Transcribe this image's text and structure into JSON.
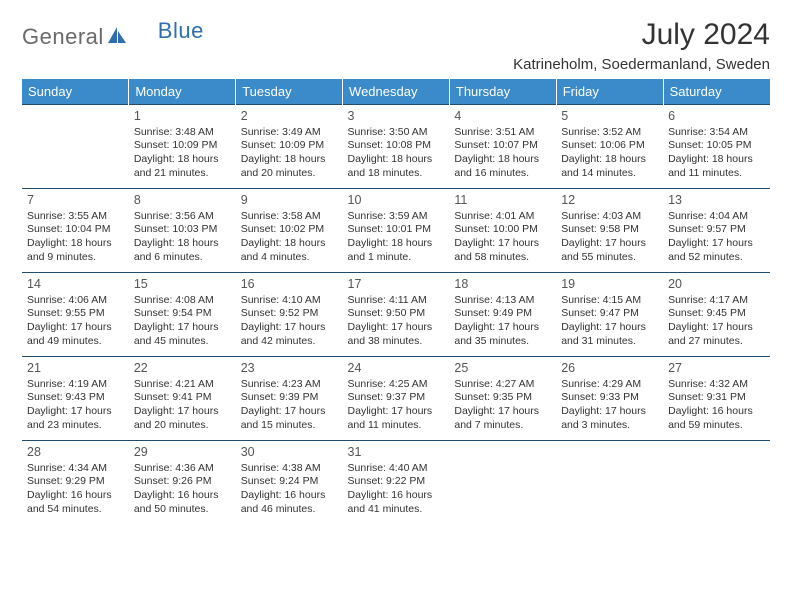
{
  "brand": {
    "part1": "General",
    "part2": "Blue"
  },
  "title": "July 2024",
  "location": "Katrineholm, Soedermanland, Sweden",
  "colors": {
    "header_bg": "#3b8bca",
    "header_text": "#ffffff",
    "rule": "#234b6b",
    "brand_gray": "#6a6a6a",
    "brand_blue": "#2f6fb0",
    "text": "#333333",
    "background": "#ffffff"
  },
  "typography": {
    "title_fontsize": 30,
    "location_fontsize": 15,
    "dayheader_fontsize": 13,
    "cell_fontsize": 10.5
  },
  "weekdays": [
    "Sunday",
    "Monday",
    "Tuesday",
    "Wednesday",
    "Thursday",
    "Friday",
    "Saturday"
  ],
  "grid": {
    "first_weekday_index": 1,
    "days_in_month": 31,
    "rows": 5,
    "cols": 7
  },
  "days": {
    "1": {
      "sunrise": "3:48 AM",
      "sunset": "10:09 PM",
      "daylight": "18 hours and 21 minutes."
    },
    "2": {
      "sunrise": "3:49 AM",
      "sunset": "10:09 PM",
      "daylight": "18 hours and 20 minutes."
    },
    "3": {
      "sunrise": "3:50 AM",
      "sunset": "10:08 PM",
      "daylight": "18 hours and 18 minutes."
    },
    "4": {
      "sunrise": "3:51 AM",
      "sunset": "10:07 PM",
      "daylight": "18 hours and 16 minutes."
    },
    "5": {
      "sunrise": "3:52 AM",
      "sunset": "10:06 PM",
      "daylight": "18 hours and 14 minutes."
    },
    "6": {
      "sunrise": "3:54 AM",
      "sunset": "10:05 PM",
      "daylight": "18 hours and 11 minutes."
    },
    "7": {
      "sunrise": "3:55 AM",
      "sunset": "10:04 PM",
      "daylight": "18 hours and 9 minutes."
    },
    "8": {
      "sunrise": "3:56 AM",
      "sunset": "10:03 PM",
      "daylight": "18 hours and 6 minutes."
    },
    "9": {
      "sunrise": "3:58 AM",
      "sunset": "10:02 PM",
      "daylight": "18 hours and 4 minutes."
    },
    "10": {
      "sunrise": "3:59 AM",
      "sunset": "10:01 PM",
      "daylight": "18 hours and 1 minute."
    },
    "11": {
      "sunrise": "4:01 AM",
      "sunset": "10:00 PM",
      "daylight": "17 hours and 58 minutes."
    },
    "12": {
      "sunrise": "4:03 AM",
      "sunset": "9:58 PM",
      "daylight": "17 hours and 55 minutes."
    },
    "13": {
      "sunrise": "4:04 AM",
      "sunset": "9:57 PM",
      "daylight": "17 hours and 52 minutes."
    },
    "14": {
      "sunrise": "4:06 AM",
      "sunset": "9:55 PM",
      "daylight": "17 hours and 49 minutes."
    },
    "15": {
      "sunrise": "4:08 AM",
      "sunset": "9:54 PM",
      "daylight": "17 hours and 45 minutes."
    },
    "16": {
      "sunrise": "4:10 AM",
      "sunset": "9:52 PM",
      "daylight": "17 hours and 42 minutes."
    },
    "17": {
      "sunrise": "4:11 AM",
      "sunset": "9:50 PM",
      "daylight": "17 hours and 38 minutes."
    },
    "18": {
      "sunrise": "4:13 AM",
      "sunset": "9:49 PM",
      "daylight": "17 hours and 35 minutes."
    },
    "19": {
      "sunrise": "4:15 AM",
      "sunset": "9:47 PM",
      "daylight": "17 hours and 31 minutes."
    },
    "20": {
      "sunrise": "4:17 AM",
      "sunset": "9:45 PM",
      "daylight": "17 hours and 27 minutes."
    },
    "21": {
      "sunrise": "4:19 AM",
      "sunset": "9:43 PM",
      "daylight": "17 hours and 23 minutes."
    },
    "22": {
      "sunrise": "4:21 AM",
      "sunset": "9:41 PM",
      "daylight": "17 hours and 20 minutes."
    },
    "23": {
      "sunrise": "4:23 AM",
      "sunset": "9:39 PM",
      "daylight": "17 hours and 15 minutes."
    },
    "24": {
      "sunrise": "4:25 AM",
      "sunset": "9:37 PM",
      "daylight": "17 hours and 11 minutes."
    },
    "25": {
      "sunrise": "4:27 AM",
      "sunset": "9:35 PM",
      "daylight": "17 hours and 7 minutes."
    },
    "26": {
      "sunrise": "4:29 AM",
      "sunset": "9:33 PM",
      "daylight": "17 hours and 3 minutes."
    },
    "27": {
      "sunrise": "4:32 AM",
      "sunset": "9:31 PM",
      "daylight": "16 hours and 59 minutes."
    },
    "28": {
      "sunrise": "4:34 AM",
      "sunset": "9:29 PM",
      "daylight": "16 hours and 54 minutes."
    },
    "29": {
      "sunrise": "4:36 AM",
      "sunset": "9:26 PM",
      "daylight": "16 hours and 50 minutes."
    },
    "30": {
      "sunrise": "4:38 AM",
      "sunset": "9:24 PM",
      "daylight": "16 hours and 46 minutes."
    },
    "31": {
      "sunrise": "4:40 AM",
      "sunset": "9:22 PM",
      "daylight": "16 hours and 41 minutes."
    }
  },
  "labels": {
    "sunrise": "Sunrise: ",
    "sunset": "Sunset: ",
    "daylight": "Daylight: "
  }
}
